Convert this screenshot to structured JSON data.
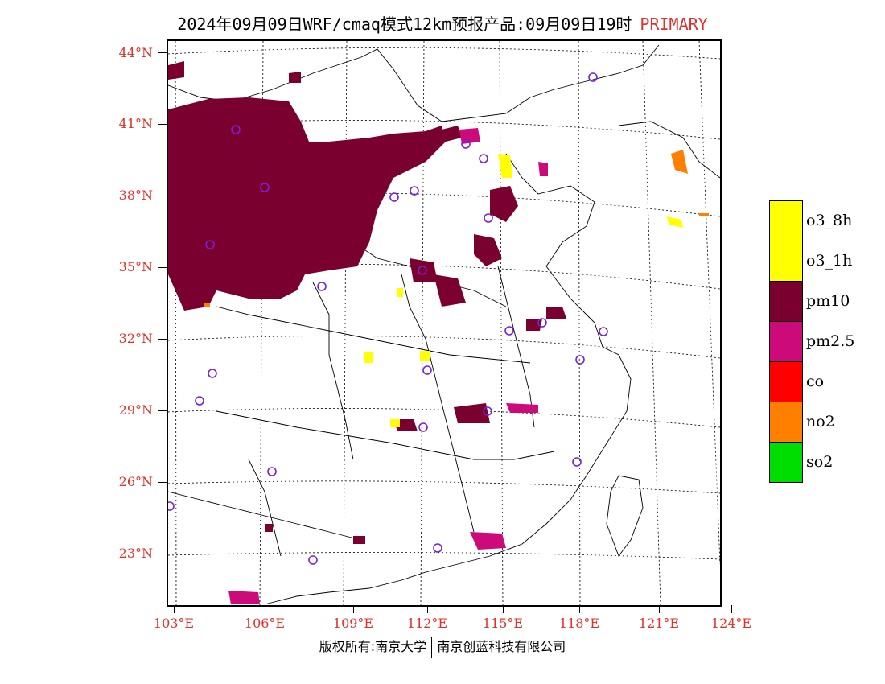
{
  "title": {
    "main": "2024年09月09日WRF/cmaq模式12km预报产品:09月09日19时",
    "tag": "PRIMARY"
  },
  "latitudes": [
    "44°N",
    "41°N",
    "38°N",
    "35°N",
    "32°N",
    "29°N",
    "26°N",
    "23°N"
  ],
  "longitudes": [
    "103°E",
    "106°E",
    "109°E",
    "112°E",
    "115°E",
    "118°E",
    "121°E",
    "124°E"
  ],
  "legend": [
    {
      "label": "o3_8h",
      "color": "#ffff00"
    },
    {
      "label": "o3_1h",
      "color": "#ffff00"
    },
    {
      "label": "pm10",
      "color": "#7a0030"
    },
    {
      "label": "pm2.5",
      "color": "#cc0a7a"
    },
    {
      "label": "co",
      "color": "#ff0000"
    },
    {
      "label": "no2",
      "color": "#ff7f00"
    },
    {
      "label": "so2",
      "color": "#00dd00"
    }
  ],
  "footer": {
    "left": "版权所有:南京大学",
    "right": "南京创蓝科技有限公司"
  },
  "colors": {
    "pm10": "#7a0030",
    "pm25": "#cc0a7a",
    "o3": "#ffff00",
    "no2": "#ff7f00",
    "station": "#7a1fd6",
    "axis_label": "#e0302a"
  }
}
